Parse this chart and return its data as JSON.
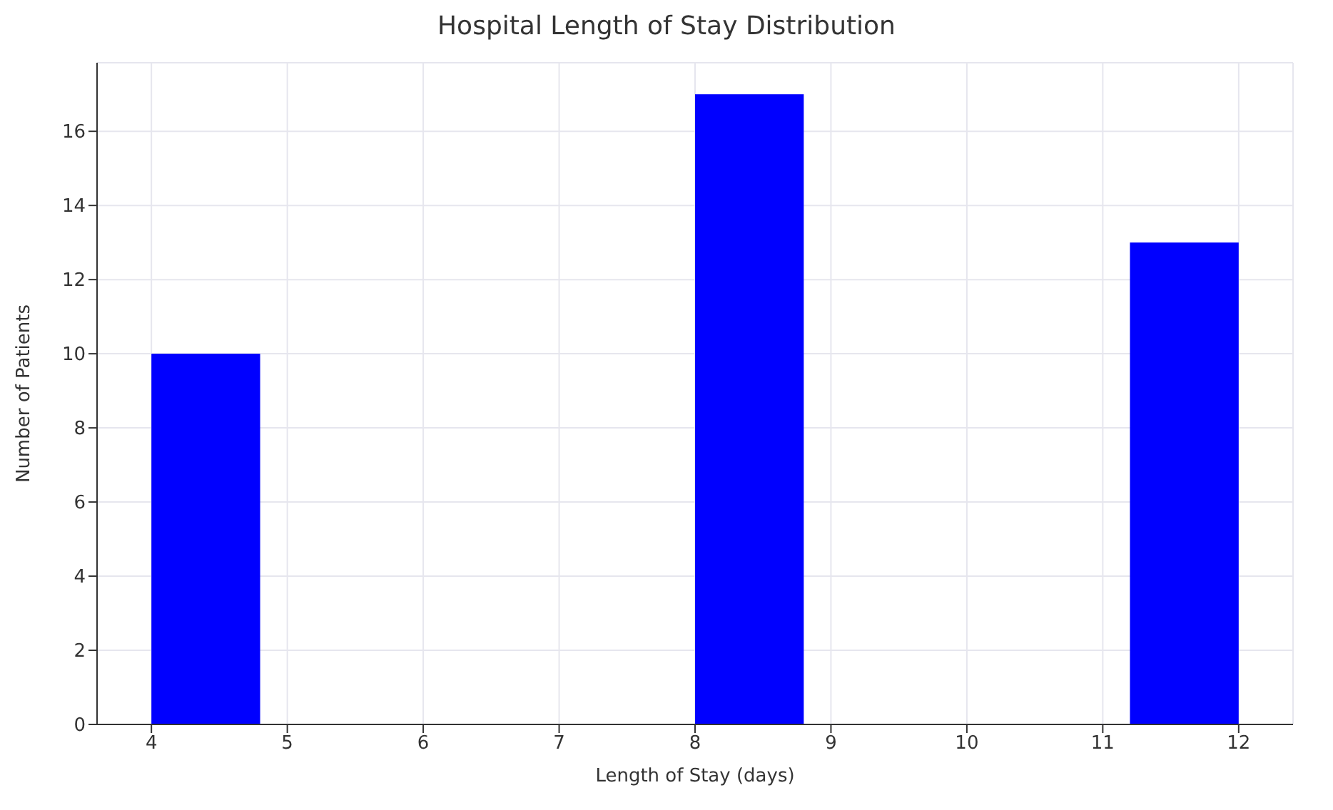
{
  "chart_data": {
    "type": "histogram",
    "title": "Hospital Length of Stay Distribution",
    "xlabel": "Length of Stay (days)",
    "ylabel": "Number of Patients",
    "bins": [
      4,
      4.8,
      5.6,
      6.4,
      7.2,
      8.0,
      8.8,
      9.6,
      10.4,
      11.2,
      12
    ],
    "values": [
      10,
      0,
      0,
      0,
      0,
      17,
      0,
      0,
      0,
      13
    ],
    "color": "#0000ff",
    "xlim": [
      3.6,
      12.4
    ],
    "xticks": [
      4,
      5,
      6,
      7,
      8,
      9,
      10,
      11,
      12
    ],
    "ylim": [
      0,
      17.85
    ],
    "yticks": [
      0,
      2,
      4,
      6,
      8,
      10,
      12,
      14,
      16
    ],
    "grid": true
  }
}
